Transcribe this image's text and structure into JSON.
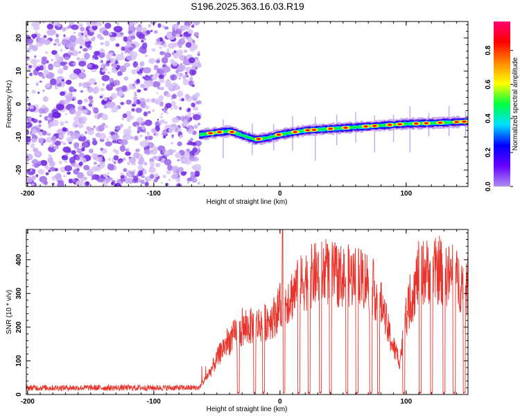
{
  "title": "S196.2025.363.16.03.R19",
  "chart_data": [
    {
      "type": "heatmap",
      "title": "S196.2025.363.16.03.R19",
      "xlabel": "Height of straight line (km)",
      "ylabel": "Frequency (Hz)",
      "xlim": [
        -201,
        149
      ],
      "ylim": [
        -25,
        25
      ],
      "xticks": [
        -200,
        -100,
        0,
        100
      ],
      "yticks": [
        -20,
        -10,
        0,
        10,
        20
      ],
      "colorbar": {
        "label": "Normalized spectral amplitude",
        "range": [
          0.0,
          0.97
        ],
        "ticks": [
          0.0,
          0.2,
          0.4,
          0.6,
          0.8
        ],
        "tick_labels": [
          "0.0",
          "0.2",
          "0.4",
          "0.6",
          "0.8"
        ],
        "colormap": [
          "#b08ef0",
          "#6600ff",
          "#0000ff",
          "#00e0ff",
          "#00ff40",
          "#ffff00",
          "#ff8800",
          "#ff0000",
          "#ff0070"
        ]
      },
      "noise_region": {
        "x": [
          -201,
          -64
        ],
        "freq": [
          -25,
          25
        ],
        "amplitude": 0.05
      },
      "signal_track": {
        "x": [
          -64,
          -50,
          -40,
          -30,
          -20,
          -10,
          0,
          20,
          40,
          60,
          80,
          100,
          120,
          149
        ],
        "freq": [
          -9.3,
          -8.6,
          -8.2,
          -9.6,
          -10.8,
          -10.2,
          -9.2,
          -8.0,
          -7.5,
          -7.0,
          -6.5,
          -6.0,
          -5.8,
          -5.3
        ]
      }
    },
    {
      "type": "line",
      "xlabel": "Height of straight line (km)",
      "ylabel": "SNR (10 * v/v)",
      "xlim": [
        -201,
        149
      ],
      "ylim": [
        0,
        490
      ],
      "xticks": [
        -200,
        -100,
        0,
        100
      ],
      "yticks": [
        0,
        100,
        200,
        300,
        400
      ],
      "series": [
        {
          "name": "SNR",
          "color": "#e8342c",
          "noise_floor": 20,
          "envelope": {
            "x": [
              -201,
              -64,
              -55,
              -45,
              -35,
              -25,
              -15,
              -5,
              0,
              5,
              10,
              20,
              30,
              40,
              50,
              60,
              70,
              80,
              85,
              90,
              95,
              100,
              110,
              120,
              130,
              140,
              149
            ],
            "y": [
              20,
              20,
              70,
              140,
              180,
              200,
              210,
              230,
              260,
              280,
              300,
              340,
              360,
              360,
              350,
              350,
              340,
              270,
              200,
              140,
              100,
              230,
              360,
              370,
              360,
              340,
              320
            ]
          },
          "dropout_centers": [
            -33,
            -20,
            -13,
            3,
            15,
            23,
            32,
            40,
            53,
            61,
            72,
            78,
            98,
            111,
            120,
            130,
            138,
            146
          ],
          "peaks": [
            {
              "x": 2,
              "y": 490
            }
          ]
        }
      ]
    }
  ]
}
